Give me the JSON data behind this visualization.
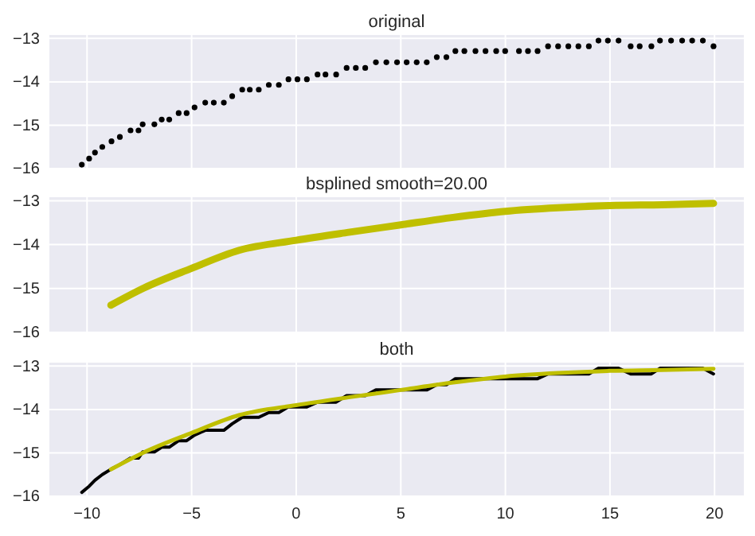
{
  "chart_data": [
    {
      "type": "scatter",
      "title": "original",
      "xlim": [
        -11.8,
        21.4
      ],
      "xticks": [
        -10,
        -5,
        0,
        5,
        10,
        15,
        20
      ],
      "ylim": [
        -16,
        -12.92
      ],
      "yticks": [
        -16,
        -15,
        -14,
        -13
      ],
      "grid": true,
      "tick_labels": "y",
      "marker": "circle",
      "series": [
        {
          "color": "#000000",
          "x": [
            -10.25,
            -9.9,
            -9.62,
            -9.27,
            -8.83,
            -8.43,
            -7.92,
            -7.54,
            -7.34,
            -6.78,
            -6.43,
            -6.07,
            -5.62,
            -5.24,
            -4.86,
            -4.35,
            -3.94,
            -3.46,
            -3.06,
            -2.58,
            -2.22,
            -1.79,
            -1.31,
            -0.83,
            -0.37,
            0.06,
            0.51,
            1.02,
            1.4,
            1.91,
            2.41,
            2.85,
            3.3,
            3.81,
            4.31,
            4.82,
            5.28,
            5.76,
            6.24,
            6.72,
            7.18,
            7.61,
            8.04,
            8.57,
            9.05,
            9.56,
            9.99,
            10.65,
            11.08,
            11.54,
            12.04,
            12.52,
            13.01,
            13.49,
            13.99,
            14.45,
            14.9,
            15.41,
            15.99,
            16.42,
            16.98,
            17.39,
            17.92,
            18.45,
            18.93,
            19.44,
            19.95
          ],
          "values": [
            -15.91,
            -15.77,
            -15.63,
            -15.5,
            -15.37,
            -15.27,
            -15.12,
            -15.12,
            -14.98,
            -14.98,
            -14.87,
            -14.87,
            -14.72,
            -14.72,
            -14.59,
            -14.48,
            -14.48,
            -14.48,
            -14.33,
            -14.18,
            -14.18,
            -14.18,
            -14.07,
            -14.07,
            -13.94,
            -13.94,
            -13.94,
            -13.83,
            -13.83,
            -13.83,
            -13.68,
            -13.68,
            -13.68,
            -13.55,
            -13.55,
            -13.55,
            -13.55,
            -13.55,
            -13.55,
            -13.43,
            -13.43,
            -13.29,
            -13.29,
            -13.29,
            -13.29,
            -13.29,
            -13.29,
            -13.29,
            -13.29,
            -13.29,
            -13.18,
            -13.18,
            -13.18,
            -13.18,
            -13.18,
            -13.05,
            -13.05,
            -13.05,
            -13.18,
            -13.18,
            -13.18,
            -13.05,
            -13.05,
            -13.05,
            -13.05,
            -13.05,
            -13.18
          ]
        }
      ]
    },
    {
      "type": "line",
      "title": "bsplined smooth=20.00",
      "xlim": [
        -11.8,
        21.4
      ],
      "xticks": [
        -10,
        -5,
        0,
        5,
        10,
        15,
        20
      ],
      "ylim": [
        -16,
        -12.92
      ],
      "yticks": [
        -16,
        -15,
        -14,
        -13
      ],
      "grid": true,
      "tick_labels": "y",
      "series": [
        {
          "color": "#bfbf00",
          "x": [
            -8.86,
            -7.29,
            -5,
            -2.73,
            0,
            2.5,
            5,
            7.5,
            10,
            12.5,
            15,
            17.5,
            19.95
          ],
          "values": [
            -15.38,
            -14.99,
            -14.54,
            -14.13,
            -13.9,
            -13.72,
            -13.55,
            -13.38,
            -13.24,
            -13.16,
            -13.11,
            -13.09,
            -13.06
          ]
        }
      ]
    },
    {
      "type": "line",
      "title": "both",
      "xlim": [
        -11.8,
        21.4
      ],
      "xticks": [
        -10,
        -5,
        0,
        5,
        10,
        15,
        20
      ],
      "ylim": [
        -16,
        -12.92
      ],
      "yticks": [
        -16,
        -15,
        -14,
        -13
      ],
      "grid": true,
      "series": [
        {
          "color": "#000000",
          "x": [
            -10.25,
            -9.9,
            -9.62,
            -9.27,
            -8.83,
            -8.43,
            -7.92,
            -7.54,
            -7.34,
            -6.78,
            -6.43,
            -6.07,
            -5.62,
            -5.24,
            -4.86,
            -4.35,
            -3.94,
            -3.46,
            -3.06,
            -2.58,
            -2.22,
            -1.79,
            -1.31,
            -0.83,
            -0.37,
            0.06,
            0.51,
            1.02,
            1.4,
            1.91,
            2.41,
            2.85,
            3.3,
            3.81,
            4.31,
            4.82,
            5.28,
            5.76,
            6.24,
            6.72,
            7.18,
            7.61,
            8.04,
            8.57,
            9.05,
            9.56,
            9.99,
            10.65,
            11.08,
            11.54,
            12.04,
            12.52,
            13.01,
            13.49,
            13.99,
            14.45,
            14.9,
            15.41,
            15.99,
            16.42,
            16.98,
            17.39,
            17.92,
            18.45,
            18.93,
            19.44,
            19.95
          ],
          "values": [
            -15.91,
            -15.77,
            -15.63,
            -15.5,
            -15.37,
            -15.27,
            -15.12,
            -15.12,
            -14.98,
            -14.98,
            -14.87,
            -14.87,
            -14.72,
            -14.72,
            -14.59,
            -14.48,
            -14.48,
            -14.48,
            -14.33,
            -14.18,
            -14.18,
            -14.18,
            -14.07,
            -14.07,
            -13.94,
            -13.94,
            -13.94,
            -13.83,
            -13.83,
            -13.83,
            -13.68,
            -13.68,
            -13.68,
            -13.55,
            -13.55,
            -13.55,
            -13.55,
            -13.55,
            -13.55,
            -13.43,
            -13.43,
            -13.29,
            -13.29,
            -13.29,
            -13.29,
            -13.29,
            -13.29,
            -13.29,
            -13.29,
            -13.29,
            -13.18,
            -13.18,
            -13.18,
            -13.18,
            -13.18,
            -13.05,
            -13.05,
            -13.05,
            -13.18,
            -13.18,
            -13.18,
            -13.05,
            -13.05,
            -13.05,
            -13.05,
            -13.05,
            -13.18
          ]
        },
        {
          "color": "#bfbf00",
          "x": [
            -8.86,
            -7.29,
            -5,
            -2.73,
            0,
            2.5,
            5,
            7.5,
            10,
            12.5,
            15,
            17.5,
            19.95
          ],
          "values": [
            -15.38,
            -14.99,
            -14.54,
            -14.13,
            -13.9,
            -13.72,
            -13.55,
            -13.38,
            -13.24,
            -13.16,
            -13.11,
            -13.09,
            -13.06
          ]
        }
      ]
    }
  ]
}
